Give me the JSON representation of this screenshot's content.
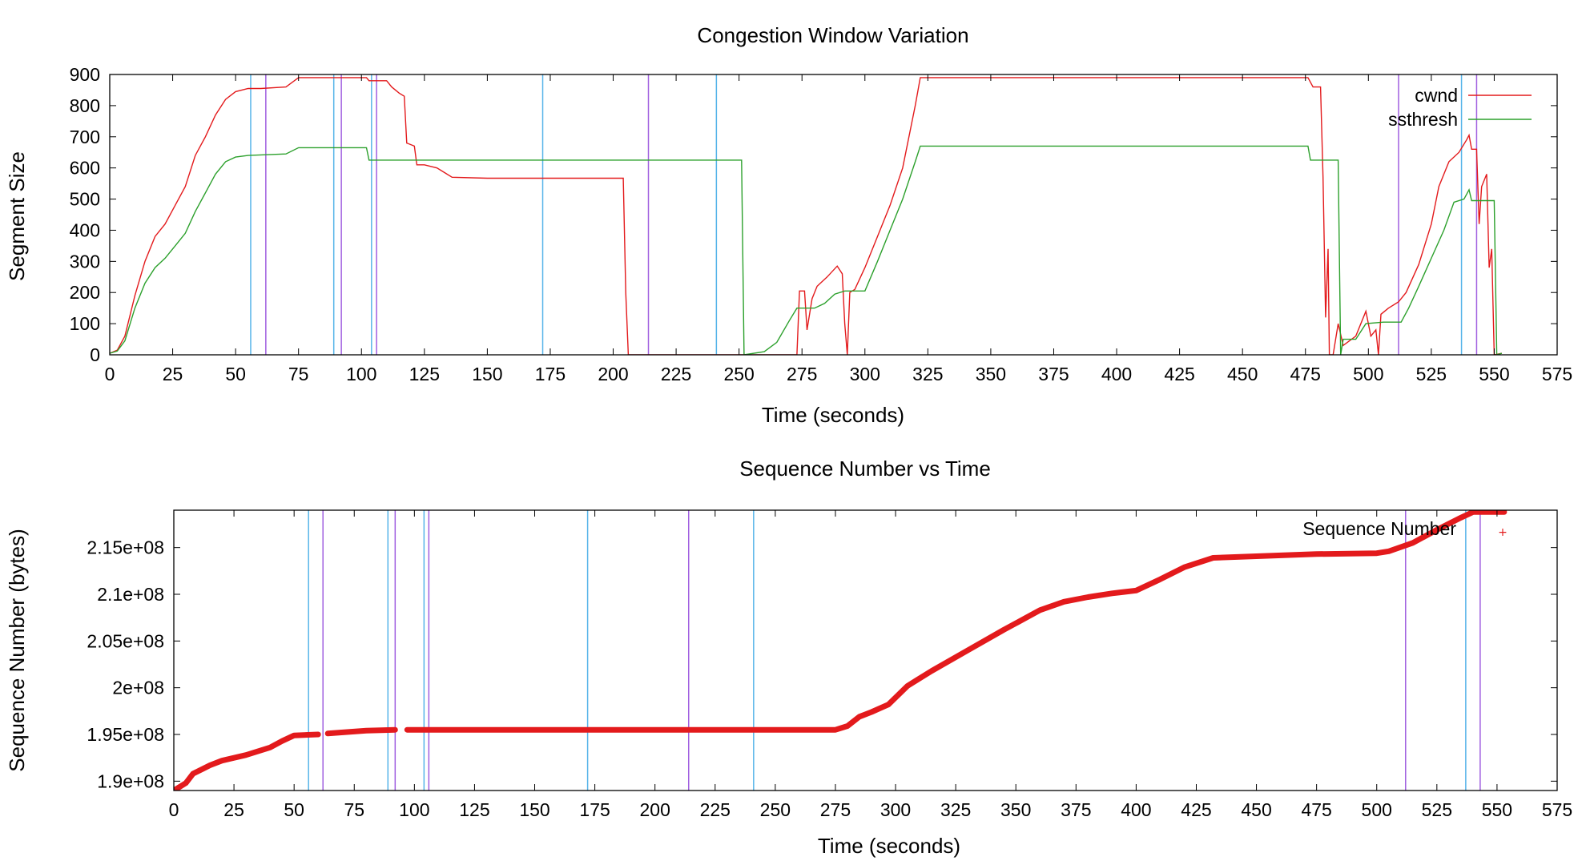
{
  "colors": {
    "cwnd": "#e31a1c",
    "ssthresh": "#2ca02c",
    "sequence": "#e31a1c",
    "event_cyan": "#56b4e9",
    "event_purple": "#a05fe0",
    "axis": "#000000"
  },
  "chart_data": [
    {
      "type": "line",
      "title": "Congestion Window Variation",
      "xlabel": "Time (seconds)",
      "ylabel": "Segment Size",
      "xlim": [
        0,
        575
      ],
      "ylim": [
        0,
        900
      ],
      "xticks": [
        0,
        25,
        50,
        75,
        100,
        125,
        150,
        175,
        200,
        225,
        250,
        275,
        300,
        325,
        350,
        375,
        400,
        425,
        450,
        475,
        500,
        525,
        550,
        575
      ],
      "yticks": [
        0,
        100,
        200,
        300,
        400,
        500,
        600,
        700,
        800,
        900
      ],
      "legend_position": "top-right",
      "event_lines": {
        "cyan": [
          56,
          89,
          104,
          172,
          241,
          537
        ],
        "purple": [
          62,
          92,
          106,
          214,
          512,
          543
        ]
      },
      "series": [
        {
          "name": "cwnd",
          "color": "#e31a1c",
          "points": [
            [
              0,
              5
            ],
            [
              3,
              15
            ],
            [
              6,
              60
            ],
            [
              10,
              190
            ],
            [
              14,
              300
            ],
            [
              18,
              380
            ],
            [
              22,
              420
            ],
            [
              26,
              480
            ],
            [
              30,
              540
            ],
            [
              34,
              640
            ],
            [
              38,
              700
            ],
            [
              42,
              770
            ],
            [
              46,
              820
            ],
            [
              50,
              845
            ],
            [
              55,
              855
            ],
            [
              60,
              855
            ],
            [
              70,
              860
            ],
            [
              75,
              890
            ],
            [
              100,
              890
            ],
            [
              102,
              890
            ],
            [
              103,
              880
            ],
            [
              110,
              880
            ],
            [
              112,
              860
            ],
            [
              115,
              840
            ],
            [
              117,
              830
            ],
            [
              118,
              680
            ],
            [
              121,
              670
            ],
            [
              122,
              610
            ],
            [
              125,
              610
            ],
            [
              130,
              600
            ],
            [
              133,
              585
            ],
            [
              136,
              570
            ],
            [
              150,
              567
            ],
            [
              180,
              567
            ],
            [
              204,
              567
            ],
            [
              205,
              200
            ],
            [
              206,
              0
            ],
            [
              273,
              0
            ],
            [
              274,
              205
            ],
            [
              276,
              205
            ],
            [
              277,
              80
            ],
            [
              279,
              180
            ],
            [
              281,
              220
            ],
            [
              285,
              250
            ],
            [
              289,
              285
            ],
            [
              291,
              260
            ],
            [
              292,
              100
            ],
            [
              293,
              0
            ],
            [
              294,
              200
            ],
            [
              296,
              210
            ],
            [
              300,
              280
            ],
            [
              305,
              380
            ],
            [
              310,
              480
            ],
            [
              315,
              600
            ],
            [
              320,
              800
            ],
            [
              322,
              890
            ],
            [
              476,
              890
            ],
            [
              478,
              860
            ],
            [
              481,
              860
            ],
            [
              482,
              570
            ],
            [
              483,
              120
            ],
            [
              484,
              340
            ],
            [
              484.5,
              0
            ],
            [
              486,
              0
            ],
            [
              488,
              100
            ],
            [
              490,
              30
            ],
            [
              495,
              60
            ],
            [
              499,
              140
            ],
            [
              501,
              60
            ],
            [
              503,
              80
            ],
            [
              504,
              0
            ],
            [
              505,
              130
            ],
            [
              508,
              150
            ],
            [
              512,
              170
            ],
            [
              515,
              200
            ],
            [
              520,
              290
            ],
            [
              525,
              420
            ],
            [
              528,
              540
            ],
            [
              532,
              620
            ],
            [
              536,
              650
            ],
            [
              539,
              690
            ],
            [
              540,
              705
            ],
            [
              541,
              660
            ],
            [
              543,
              660
            ],
            [
              544,
              420
            ],
            [
              545,
              540
            ],
            [
              547,
              580
            ],
            [
              548,
              280
            ],
            [
              549,
              340
            ],
            [
              550,
              0
            ],
            [
              553,
              5
            ]
          ]
        },
        {
          "name": "ssthresh",
          "color": "#2ca02c",
          "points": [
            [
              0,
              5
            ],
            [
              3,
              12
            ],
            [
              6,
              45
            ],
            [
              10,
              150
            ],
            [
              14,
              230
            ],
            [
              18,
              280
            ],
            [
              22,
              310
            ],
            [
              26,
              350
            ],
            [
              30,
              390
            ],
            [
              34,
              460
            ],
            [
              38,
              520
            ],
            [
              42,
              580
            ],
            [
              46,
              620
            ],
            [
              50,
              635
            ],
            [
              55,
              640
            ],
            [
              70,
              645
            ],
            [
              75,
              665
            ],
            [
              102,
              665
            ],
            [
              103,
              625
            ],
            [
              251,
              625
            ],
            [
              252,
              0
            ],
            [
              260,
              10
            ],
            [
              265,
              40
            ],
            [
              270,
              110
            ],
            [
              273,
              150
            ],
            [
              280,
              150
            ],
            [
              284,
              165
            ],
            [
              288,
              195
            ],
            [
              292,
              205
            ],
            [
              300,
              205
            ],
            [
              305,
              300
            ],
            [
              310,
              400
            ],
            [
              315,
              500
            ],
            [
              320,
              620
            ],
            [
              322,
              670
            ],
            [
              476,
              670
            ],
            [
              477,
              625
            ],
            [
              488,
              625
            ],
            [
              489,
              0
            ],
            [
              490,
              50
            ],
            [
              495,
              50
            ],
            [
              499,
              100
            ],
            [
              506,
              105
            ],
            [
              513,
              105
            ],
            [
              516,
              150
            ],
            [
              520,
              220
            ],
            [
              525,
              310
            ],
            [
              530,
              400
            ],
            [
              534,
              490
            ],
            [
              538,
              500
            ],
            [
              540,
              530
            ],
            [
              541,
              495
            ],
            [
              550,
              495
            ],
            [
              551,
              0
            ],
            [
              553,
              5
            ]
          ]
        }
      ]
    },
    {
      "type": "scatter",
      "title": "Sequence Number vs Time",
      "xlabel": "Time (seconds)",
      "ylabel": "Sequence Number (bytes)",
      "xlim": [
        0,
        575
      ],
      "ylim": [
        189000000,
        219000000
      ],
      "xticks": [
        0,
        25,
        50,
        75,
        100,
        125,
        150,
        175,
        200,
        225,
        250,
        275,
        300,
        325,
        350,
        375,
        400,
        425,
        450,
        475,
        500,
        525,
        550,
        575
      ],
      "yticks": [
        {
          "value": 190000000,
          "label": "1.9e+08"
        },
        {
          "value": 195000000,
          "label": "1.95e+08"
        },
        {
          "value": 200000000,
          "label": "2e+08"
        },
        {
          "value": 205000000,
          "label": "2.05e+08"
        },
        {
          "value": 210000000,
          "label": "2.1e+08"
        },
        {
          "value": 215000000,
          "label": "2.15e+08"
        }
      ],
      "legend_position": "top-right",
      "event_lines": {
        "cyan": [
          56,
          89,
          104,
          172,
          241,
          537
        ],
        "purple": [
          62,
          92,
          106,
          214,
          512,
          543
        ]
      },
      "series": [
        {
          "name": "Sequence Number",
          "color": "#e31a1c",
          "marker": "+",
          "segments": [
            [
              [
                0,
                189000000
              ],
              [
                5,
                189800000
              ],
              [
                8,
                190800000
              ],
              [
                15,
                191700000
              ],
              [
                20,
                192200000
              ],
              [
                30,
                192800000
              ],
              [
                40,
                193600000
              ],
              [
                45,
                194300000
              ],
              [
                50,
                194900000
              ],
              [
                60,
                195000000
              ]
            ],
            [
              [
                64,
                195100000
              ],
              [
                80,
                195400000
              ],
              [
                92,
                195500000
              ]
            ],
            [
              [
                97,
                195500000
              ],
              [
                275,
                195500000
              ],
              [
                280,
                195900000
              ],
              [
                285,
                196900000
              ],
              [
                290,
                197400000
              ],
              [
                297,
                198200000
              ],
              [
                305,
                200200000
              ],
              [
                315,
                201800000
              ],
              [
                330,
                204000000
              ],
              [
                345,
                206200000
              ],
              [
                350,
                206900000
              ],
              [
                360,
                208300000
              ],
              [
                370,
                209200000
              ],
              [
                380,
                209700000
              ],
              [
                390,
                210100000
              ],
              [
                400,
                210400000
              ],
              [
                410,
                211600000
              ],
              [
                420,
                212900000
              ],
              [
                432,
                213900000
              ],
              [
                475,
                214300000
              ],
              [
                500,
                214400000
              ],
              [
                505,
                214600000
              ],
              [
                515,
                215500000
              ],
              [
                525,
                216900000
              ],
              [
                535,
                218200000
              ],
              [
                540,
                218800000
              ],
              [
                553,
                218800000
              ]
            ]
          ]
        }
      ]
    }
  ]
}
